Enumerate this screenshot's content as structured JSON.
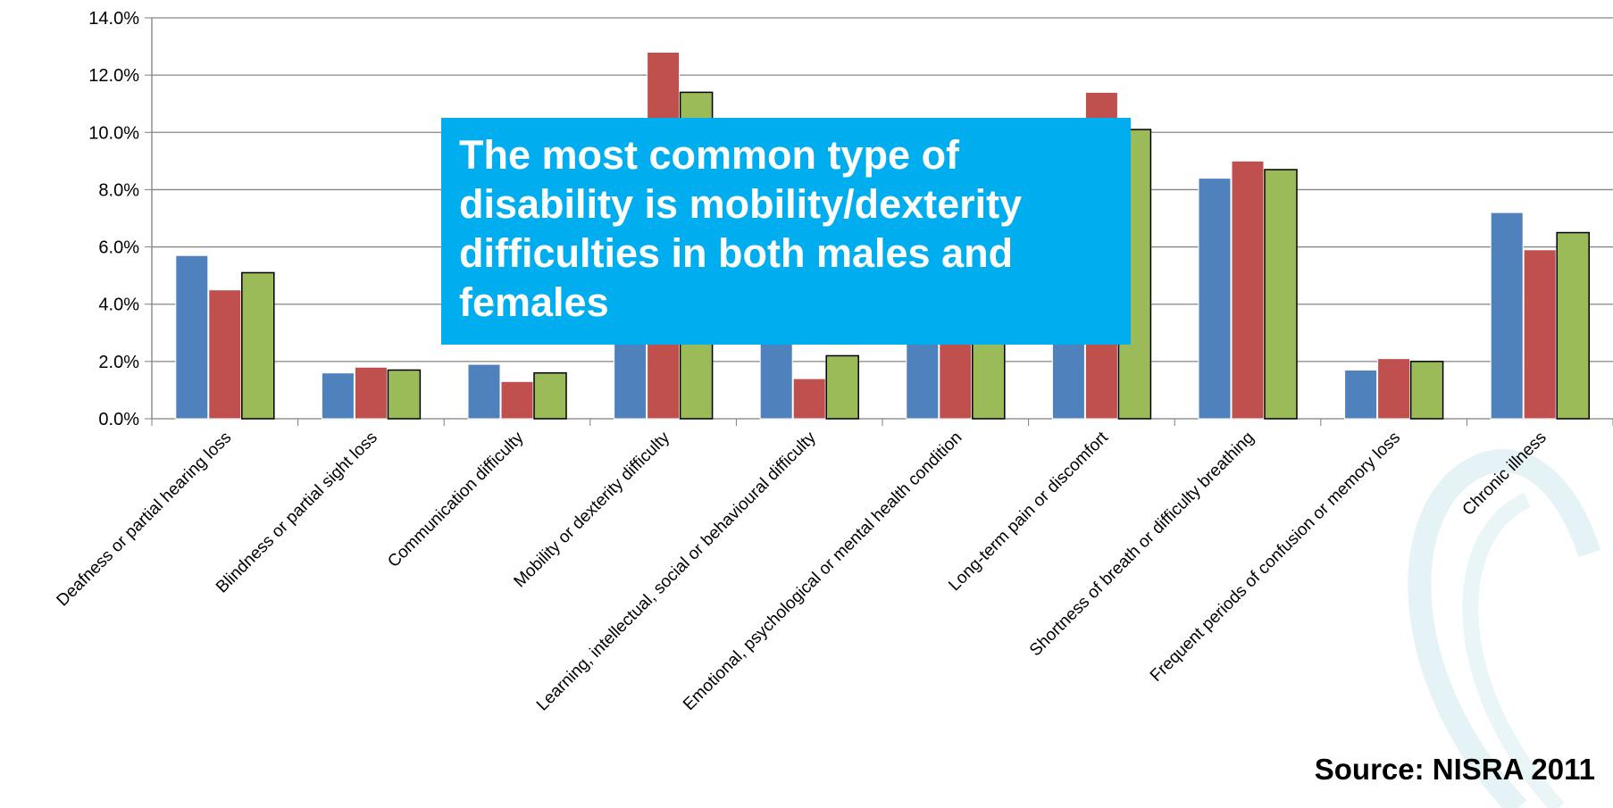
{
  "callout": {
    "text": "The most common type of disability is mobility/dexterity difficulties in both males and females"
  },
  "source": "Source: NISRA 2011",
  "colors": {
    "series_1": "#4f81bd",
    "series_2": "#c0504d",
    "series_3": "#9bbb59",
    "callout_bg": "#00aeef",
    "gridline": "#868686",
    "watermark": "#d9eef2"
  },
  "chart_data": {
    "type": "bar",
    "categories": [
      "Deafness or partial hearing loss",
      "Blindness or partial sight loss",
      "Communication difficulty",
      "Mobility or dexterity difficulty",
      "Learning, intellectual, social or behavioural difficulty",
      "Emotional, psychological or mental health condition",
      "Long-term pain or discomfort",
      "Shortness of breath or difficulty breathing",
      "Frequent periods of confusion or memory loss",
      "Chronic illness"
    ],
    "series": [
      {
        "values": [
          5.7,
          1.6,
          1.9,
          3.0,
          3.0,
          3.0,
          3.0,
          8.4,
          1.7,
          7.2
        ]
      },
      {
        "values": [
          4.5,
          1.8,
          1.3,
          12.8,
          1.4,
          3.0,
          11.4,
          9.0,
          2.1,
          5.9
        ]
      },
      {
        "values": [
          5.1,
          1.7,
          1.6,
          11.4,
          2.2,
          3.0,
          10.1,
          8.7,
          2.0,
          6.5
        ]
      }
    ],
    "ylim": [
      0,
      14
    ],
    "yticks": [
      "0.0%",
      "2.0%",
      "4.0%",
      "6.0%",
      "8.0%",
      "10.0%",
      "12.0%",
      "14.0%"
    ],
    "grid": true,
    "legend": "none"
  }
}
